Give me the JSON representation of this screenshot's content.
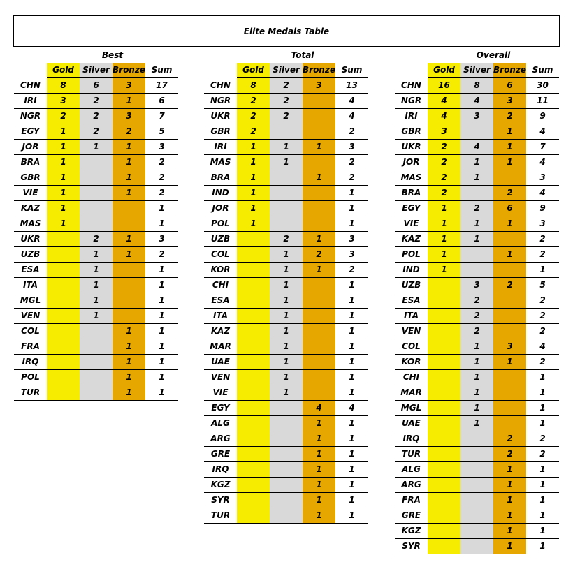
{
  "title": "Elite Medals Table",
  "tables": [
    {
      "title": "Best",
      "headers": [
        "Gold",
        "Silver",
        "Bronze",
        "Sum"
      ],
      "rows": [
        [
          "CHN",
          8,
          6,
          3,
          17
        ],
        [
          "IRI",
          3,
          2,
          1,
          6
        ],
        [
          "NGR",
          2,
          2,
          3,
          7
        ],
        [
          "EGY",
          1,
          2,
          2,
          5
        ],
        [
          "JOR",
          1,
          1,
          1,
          3
        ],
        [
          "BRA",
          1,
          null,
          1,
          2
        ],
        [
          "GBR",
          1,
          null,
          1,
          2
        ],
        [
          "VIE",
          1,
          null,
          1,
          2
        ],
        [
          "KAZ",
          1,
          null,
          null,
          1
        ],
        [
          "MAS",
          1,
          null,
          null,
          1
        ],
        [
          "UKR",
          null,
          2,
          1,
          3
        ],
        [
          "UZB",
          null,
          1,
          1,
          2
        ],
        [
          "ESA",
          null,
          1,
          null,
          1
        ],
        [
          "ITA",
          null,
          1,
          null,
          1
        ],
        [
          "MGL",
          null,
          1,
          null,
          1
        ],
        [
          "VEN",
          null,
          1,
          null,
          1
        ],
        [
          "COL",
          null,
          null,
          1,
          1
        ],
        [
          "FRA",
          null,
          null,
          1,
          1
        ],
        [
          "IRQ",
          null,
          null,
          1,
          1
        ],
        [
          "POL",
          null,
          null,
          1,
          1
        ],
        [
          "TUR",
          null,
          null,
          1,
          1
        ]
      ]
    },
    {
      "title": "Total",
      "headers": [
        "Gold",
        "Silver",
        "Bronze",
        "Sum"
      ],
      "rows": [
        [
          "CHN",
          8,
          2,
          3,
          13
        ],
        [
          "NGR",
          2,
          2,
          null,
          4
        ],
        [
          "UKR",
          2,
          2,
          null,
          4
        ],
        [
          "GBR",
          2,
          null,
          null,
          2
        ],
        [
          "IRI",
          1,
          1,
          1,
          3
        ],
        [
          "MAS",
          1,
          1,
          null,
          2
        ],
        [
          "BRA",
          1,
          null,
          1,
          2
        ],
        [
          "IND",
          1,
          null,
          null,
          1
        ],
        [
          "JOR",
          1,
          null,
          null,
          1
        ],
        [
          "POL",
          1,
          null,
          null,
          1
        ],
        [
          "UZB",
          null,
          2,
          1,
          3
        ],
        [
          "COL",
          null,
          1,
          2,
          3
        ],
        [
          "KOR",
          null,
          1,
          1,
          2
        ],
        [
          "CHI",
          null,
          1,
          null,
          1
        ],
        [
          "ESA",
          null,
          1,
          null,
          1
        ],
        [
          "ITA",
          null,
          1,
          null,
          1
        ],
        [
          "KAZ",
          null,
          1,
          null,
          1
        ],
        [
          "MAR",
          null,
          1,
          null,
          1
        ],
        [
          "UAE",
          null,
          1,
          null,
          1
        ],
        [
          "VEN",
          null,
          1,
          null,
          1
        ],
        [
          "VIE",
          null,
          1,
          null,
          1
        ],
        [
          "EGY",
          null,
          null,
          4,
          4
        ],
        [
          "ALG",
          null,
          null,
          1,
          1
        ],
        [
          "ARG",
          null,
          null,
          1,
          1
        ],
        [
          "GRE",
          null,
          null,
          1,
          1
        ],
        [
          "IRQ",
          null,
          null,
          1,
          1
        ],
        [
          "KGZ",
          null,
          null,
          1,
          1
        ],
        [
          "SYR",
          null,
          null,
          1,
          1
        ],
        [
          "TUR",
          null,
          null,
          1,
          1
        ]
      ]
    },
    {
      "title": "Overall",
      "headers": [
        "Gold",
        "Silver",
        "Bronze",
        "Sum"
      ],
      "rows": [
        [
          "CHN",
          16,
          8,
          6,
          30
        ],
        [
          "NGR",
          4,
          4,
          3,
          11
        ],
        [
          "IRI",
          4,
          3,
          2,
          9
        ],
        [
          "GBR",
          3,
          null,
          1,
          4
        ],
        [
          "UKR",
          2,
          4,
          1,
          7
        ],
        [
          "JOR",
          2,
          1,
          1,
          4
        ],
        [
          "MAS",
          2,
          1,
          null,
          3
        ],
        [
          "BRA",
          2,
          null,
          2,
          4
        ],
        [
          "EGY",
          1,
          2,
          6,
          9
        ],
        [
          "VIE",
          1,
          1,
          1,
          3
        ],
        [
          "KAZ",
          1,
          1,
          null,
          2
        ],
        [
          "POL",
          1,
          null,
          1,
          2
        ],
        [
          "IND",
          1,
          null,
          null,
          1
        ],
        [
          "UZB",
          null,
          3,
          2,
          5
        ],
        [
          "ESA",
          null,
          2,
          null,
          2
        ],
        [
          "ITA",
          null,
          2,
          null,
          2
        ],
        [
          "VEN",
          null,
          2,
          null,
          2
        ],
        [
          "COL",
          null,
          1,
          3,
          4
        ],
        [
          "KOR",
          null,
          1,
          1,
          2
        ],
        [
          "CHI",
          null,
          1,
          null,
          1
        ],
        [
          "MAR",
          null,
          1,
          null,
          1
        ],
        [
          "MGL",
          null,
          1,
          null,
          1
        ],
        [
          "UAE",
          null,
          1,
          null,
          1
        ],
        [
          "IRQ",
          null,
          null,
          2,
          2
        ],
        [
          "TUR",
          null,
          null,
          2,
          2
        ],
        [
          "ALG",
          null,
          null,
          1,
          1
        ],
        [
          "ARG",
          null,
          null,
          1,
          1
        ],
        [
          "FRA",
          null,
          null,
          1,
          1
        ],
        [
          "GRE",
          null,
          null,
          1,
          1
        ],
        [
          "KGZ",
          null,
          null,
          1,
          1
        ],
        [
          "SYR",
          null,
          null,
          1,
          1
        ]
      ]
    }
  ]
}
